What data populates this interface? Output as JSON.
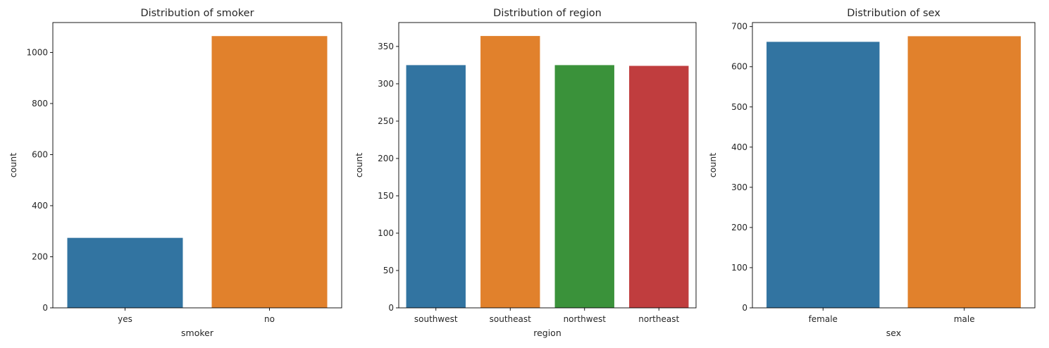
{
  "chart_data": [
    {
      "type": "bar",
      "title": "Distribution of smoker",
      "xlabel": "smoker",
      "ylabel": "count",
      "categories": [
        "yes",
        "no"
      ],
      "values": [
        274,
        1064
      ],
      "ylim": [
        0,
        1117
      ],
      "yticks": [
        0,
        200,
        400,
        600,
        800,
        1000
      ],
      "colors": [
        "#3274a1",
        "#e1812c"
      ],
      "grid": false
    },
    {
      "type": "bar",
      "title": "Distribution of region",
      "xlabel": "region",
      "ylabel": "count",
      "categories": [
        "southwest",
        "southeast",
        "northwest",
        "northeast"
      ],
      "values": [
        325,
        364,
        325,
        324
      ],
      "ylim": [
        0,
        382
      ],
      "yticks": [
        0,
        50,
        100,
        150,
        200,
        250,
        300,
        350
      ],
      "colors": [
        "#3274a1",
        "#e1812c",
        "#3a923a",
        "#c03d3e"
      ],
      "grid": false
    },
    {
      "type": "bar",
      "title": "Distribution of sex",
      "xlabel": "sex",
      "ylabel": "count",
      "categories": [
        "female",
        "male"
      ],
      "values": [
        662,
        676
      ],
      "ylim": [
        0,
        710
      ],
      "yticks": [
        0,
        100,
        200,
        300,
        400,
        500,
        600,
        700
      ],
      "colors": [
        "#3274a1",
        "#e1812c"
      ],
      "grid": false
    }
  ]
}
